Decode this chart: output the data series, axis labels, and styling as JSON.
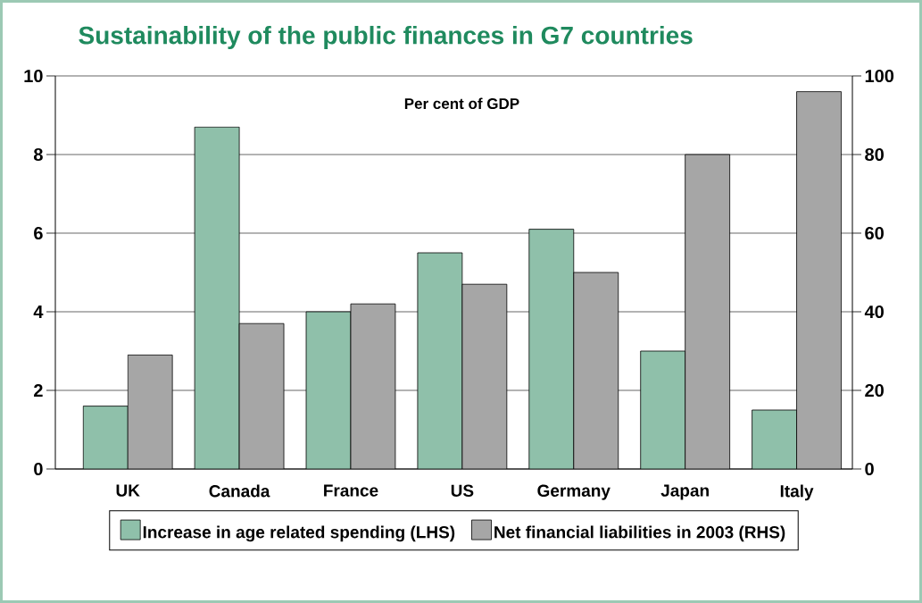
{
  "chart_data": {
    "type": "bar",
    "title": "Sustainability of the public finances in G7 countries",
    "annotations": [
      "Per cent of GDP"
    ],
    "categories": [
      "UK",
      "Canada",
      "France",
      "US",
      "Germany",
      "Japan",
      "Italy"
    ],
    "series": [
      {
        "name": "Increase in age related spending (LHS)",
        "color": "#8fc0aa",
        "values": [
          1.6,
          8.7,
          4.0,
          5.5,
          6.1,
          3.0,
          1.5
        ]
      },
      {
        "name": "Net financial liabilities in 2003 (RHS)",
        "color": "#a6a6a6",
        "axis": "y2",
        "values": [
          29,
          37,
          42,
          47,
          50,
          80,
          96
        ]
      }
    ],
    "ylim": [
      0,
      10
    ],
    "yticks": [
      0,
      2,
      4,
      6,
      8,
      10
    ],
    "y2lim": [
      0,
      100
    ],
    "y2ticks": [
      0,
      20,
      40,
      60,
      80,
      100
    ],
    "grid": "y",
    "legend": "bottom"
  }
}
